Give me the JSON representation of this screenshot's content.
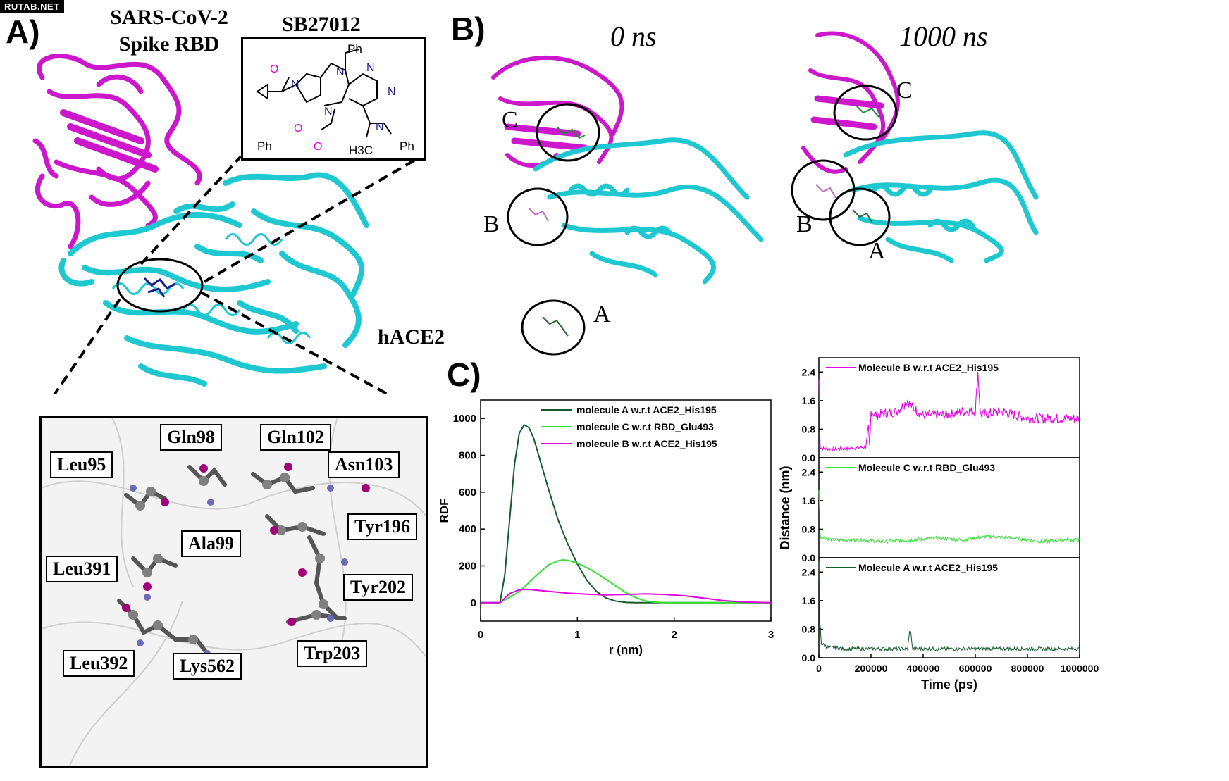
{
  "watermark": "RUTAB.NET",
  "panelA": {
    "letter": "A)",
    "protein_title_line1": "SARS-CoV-2",
    "protein_title_line2": "Spike RBD",
    "receptor_label": "hACE2",
    "compound": {
      "name": "SB27012",
      "atoms": {
        "ph1": "Ph",
        "ph2": "Ph",
        "ph3": "Ph",
        "h3c": "H3C",
        "o": "O",
        "n": "N"
      }
    },
    "residues": [
      "Gln98",
      "Gln102",
      "Leu95",
      "Asn103",
      "Tyr196",
      "Ala99",
      "Leu391",
      "Tyr202",
      "Trp203",
      "Leu392",
      "Lys562"
    ]
  },
  "panelB": {
    "letter": "B)",
    "time0": "0 ns",
    "time1": "1000 ns",
    "site_labels": {
      "a": "A",
      "b": "B",
      "c": "C"
    }
  },
  "panelC": {
    "letter": "C)"
  },
  "colors": {
    "magenta": "#cc17cc",
    "cyan": "#1ec8d0",
    "darkgreen": "#145c2a",
    "green": "#33e033",
    "mol_magenta": "#e000e0"
  },
  "chart_data": [
    {
      "type": "line",
      "ylabel": "RDF",
      "xlabel": "r (nm)",
      "xlim": [
        0,
        3
      ],
      "ylim": [
        -100,
        1100
      ],
      "xticks": [
        0,
        1,
        2,
        3
      ],
      "yticks": [
        0,
        200,
        400,
        600,
        800,
        1000
      ],
      "legend": "top-right",
      "series": [
        {
          "name": "molecule A w.r.t ACE2_His195",
          "color": "#145c2a",
          "x": [
            0,
            0.2,
            0.25,
            0.3,
            0.35,
            0.4,
            0.45,
            0.5,
            0.55,
            0.6,
            0.7,
            0.8,
            0.9,
            1.0,
            1.1,
            1.2,
            1.3,
            1.4,
            1.5,
            1.6,
            1.8,
            3.0
          ],
          "y": [
            0,
            0,
            150,
            450,
            750,
            920,
            965,
            950,
            890,
            800,
            620,
            450,
            320,
            210,
            120,
            60,
            25,
            8,
            2,
            0,
            0,
            0
          ]
        },
        {
          "name": "molecule C w.r.t RBD_Glu493",
          "color": "#33e033",
          "x": [
            0,
            0.2,
            0.3,
            0.4,
            0.5,
            0.6,
            0.7,
            0.8,
            0.85,
            0.9,
            1.0,
            1.1,
            1.2,
            1.3,
            1.4,
            1.5,
            1.6,
            1.7,
            1.8,
            1.9,
            3.0
          ],
          "y": [
            0,
            0,
            30,
            60,
            110,
            160,
            205,
            228,
            232,
            230,
            215,
            190,
            160,
            125,
            90,
            55,
            28,
            10,
            3,
            0,
            0
          ]
        },
        {
          "name": "molecule B w.r.t ACE2_His195",
          "color": "#e000e0",
          "x": [
            0,
            0.2,
            0.3,
            0.4,
            0.5,
            0.7,
            0.9,
            1.1,
            1.3,
            1.5,
            1.7,
            1.9,
            2.1,
            2.3,
            2.5,
            2.7,
            3.0
          ],
          "y": [
            0,
            0,
            50,
            70,
            72,
            62,
            52,
            46,
            42,
            45,
            48,
            45,
            38,
            25,
            12,
            4,
            0
          ]
        }
      ]
    },
    {
      "type": "line",
      "xlabel": "Time (ps)",
      "ylabel": "Distance (nm)",
      "xlim": [
        0,
        1000000
      ],
      "xticks": [
        0,
        200000,
        400000,
        600000,
        800000,
        1000000
      ],
      "panels": [
        {
          "name": "Molecule B w.r.t ACE2_His195",
          "color": "#e000e0",
          "ylim": [
            0,
            2.8
          ],
          "yticks": [
            0.0,
            0.8,
            1.6,
            2.4
          ],
          "x": [
            0,
            5000,
            20000,
            100000,
            180000,
            190000,
            195000,
            200000,
            220000,
            300000,
            340000,
            360000,
            400000,
            500000,
            550000,
            600000,
            610000,
            620000,
            700000,
            800000,
            900000,
            1000000
          ],
          "y": [
            2.2,
            0.3,
            0.25,
            0.25,
            0.3,
            0.8,
            0.3,
            1.3,
            1.2,
            1.3,
            1.6,
            1.4,
            1.2,
            1.2,
            1.3,
            1.3,
            2.4,
            1.2,
            1.3,
            1.1,
            1.1,
            1.1
          ]
        },
        {
          "name": "Molecule C w.r.t RBD_Glu493",
          "color": "#33e033",
          "ylim": [
            0,
            2.8
          ],
          "yticks": [
            0.0,
            0.8,
            1.6,
            2.4
          ],
          "x": [
            0,
            5000,
            50000,
            150000,
            250000,
            350000,
            450000,
            550000,
            650000,
            750000,
            850000,
            950000,
            1000000
          ],
          "y": [
            2.0,
            0.6,
            0.5,
            0.5,
            0.45,
            0.5,
            0.55,
            0.5,
            0.6,
            0.55,
            0.45,
            0.5,
            0.5
          ]
        },
        {
          "name": "Molecule A w.r.t ACE2_His195",
          "color": "#145c2a",
          "ylim": [
            0,
            2.8
          ],
          "yticks": [
            0.0,
            0.8,
            1.6,
            2.4
          ],
          "x": [
            0,
            3000,
            10000,
            30000,
            100000,
            200000,
            340000,
            350000,
            360000,
            400000,
            500000,
            600000,
            700000,
            800000,
            900000,
            1000000
          ],
          "y": [
            2.6,
            1.0,
            0.4,
            0.3,
            0.25,
            0.25,
            0.25,
            0.8,
            0.25,
            0.25,
            0.25,
            0.25,
            0.25,
            0.25,
            0.25,
            0.25
          ]
        }
      ]
    }
  ]
}
